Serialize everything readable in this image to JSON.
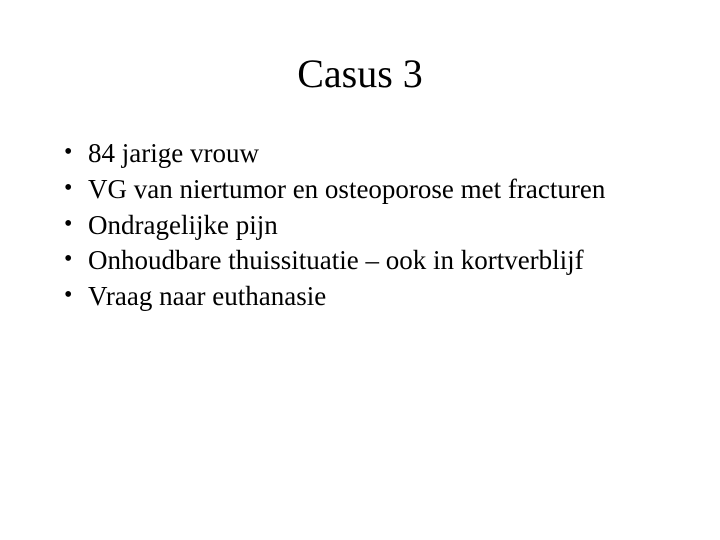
{
  "slide": {
    "title": "Casus 3",
    "bullets": [
      "84 jarige vrouw",
      "VG van niertumor en osteoporose met fracturen",
      "Ondragelijke pijn",
      "Onhoudbare thuissituatie – ook in kortverblijf",
      "Vraag naar euthanasie"
    ],
    "background_color": "#ffffff",
    "text_color": "#000000",
    "title_fontsize": 40,
    "body_fontsize": 27,
    "font_family": "Times New Roman"
  }
}
